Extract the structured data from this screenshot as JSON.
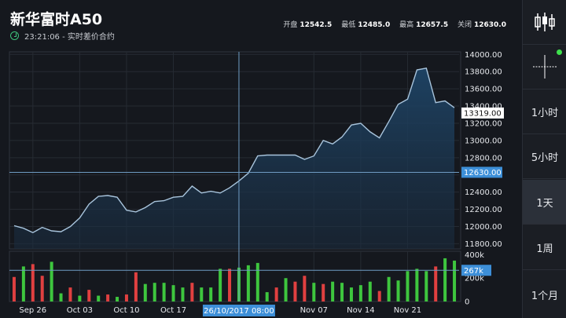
{
  "header": {
    "title": "新华富时A50",
    "timestamp": "23:21:06 - 实时差价合约",
    "stats": [
      {
        "label": "开盘",
        "value": "12542.5"
      },
      {
        "label": "最低",
        "value": "12485.0"
      },
      {
        "label": "最高",
        "value": "12657.5"
      },
      {
        "label": "关闭",
        "value": "12630.0"
      }
    ]
  },
  "sidebar": {
    "icons": [
      "candlestick-icon",
      "crosshair-icon"
    ],
    "items": [
      {
        "label": "1小时",
        "active": false
      },
      {
        "label": "5小时",
        "active": false
      },
      {
        "label": "1天",
        "active": true
      },
      {
        "label": "1周",
        "active": false
      },
      {
        "label": "1个月",
        "active": false
      }
    ]
  },
  "colors": {
    "background": "#15181e",
    "line": "#a8c4dc",
    "area": "#1c3a58",
    "grid": "#262b33",
    "up": "#3ec63e",
    "down": "#e04040",
    "label_bg": "#3d8fd8",
    "cursor": "#6f9cc4"
  },
  "chart_data": {
    "type": "area",
    "price_ticks": [
      "14000.00",
      "13800.00",
      "13600.00",
      "13400.00",
      "13200.00",
      "13000.00",
      "12800.00",
      "12600.00",
      "12400.00",
      "12200.00",
      "12000.00",
      "11800.00"
    ],
    "ylim": [
      11740,
      14030
    ],
    "x_ticks": [
      "Sep 26",
      "Oct 03",
      "Oct 10",
      "Oct 17",
      "Nov 07",
      "Nov 14",
      "Nov 21"
    ],
    "x_tick_index": [
      2,
      7,
      12,
      17,
      32,
      37,
      42
    ],
    "crosshair_index": 24,
    "crosshair_date": "26/10/2017 08:00",
    "current_price": "13319.00",
    "current_value": 13319,
    "close_label": "12630.00",
    "close_value": 12630,
    "values": [
      12010,
      11980,
      11930,
      11990,
      11950,
      11940,
      12000,
      12100,
      12260,
      12350,
      12360,
      12340,
      12190,
      12170,
      12220,
      12290,
      12300,
      12340,
      12350,
      12470,
      12390,
      12410,
      12390,
      12450,
      12530,
      12620,
      12820,
      12830,
      12830,
      12830,
      12830,
      12780,
      12820,
      13000,
      12960,
      13040,
      13180,
      13200,
      13100,
      13030,
      13220,
      13420,
      13480,
      13820,
      13840,
      13440,
      13460,
      13380
    ],
    "volume_ticks": [
      "400k",
      "200k",
      "0"
    ],
    "volume_ylim": [
      0,
      430000
    ],
    "volume_label": "267k",
    "volume_value": 267000,
    "volume": [
      210000,
      300000,
      320000,
      220000,
      340000,
      70000,
      120000,
      50000,
      100000,
      50000,
      60000,
      40000,
      60000,
      250000,
      150000,
      160000,
      160000,
      140000,
      120000,
      160000,
      120000,
      120000,
      280000,
      280000,
      290000,
      310000,
      330000,
      80000,
      120000,
      200000,
      170000,
      220000,
      160000,
      150000,
      170000,
      160000,
      120000,
      140000,
      170000,
      90000,
      210000,
      180000,
      260000,
      280000,
      260000,
      300000,
      370000,
      350000
    ],
    "volume_up": [
      false,
      true,
      false,
      false,
      true,
      true,
      false,
      true,
      false,
      true,
      false,
      true,
      false,
      false,
      true,
      true,
      true,
      true,
      true,
      false,
      true,
      true,
      true,
      false,
      true,
      true,
      true,
      true,
      false,
      true,
      false,
      false,
      true,
      false,
      true,
      true,
      true,
      true,
      true,
      false,
      true,
      true,
      true,
      true,
      true,
      false,
      true,
      true
    ]
  }
}
